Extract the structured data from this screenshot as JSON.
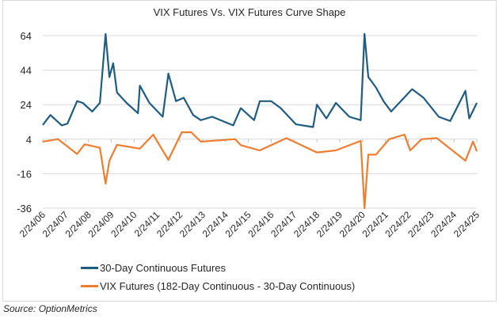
{
  "chart_data": {
    "type": "line",
    "title": "VIX Futures Vs. VIX Futures Curve Shape",
    "xlabel": "",
    "ylabel": "",
    "ylim": [
      -36,
      64
    ],
    "yticks": [
      64,
      44,
      24,
      4,
      -16,
      -36
    ],
    "ytick_labels": [
      "64",
      "44",
      "24",
      "4",
      "-16",
      "-36"
    ],
    "xlim": [
      "2006-02",
      "2025-02"
    ],
    "xtick_labels": [
      "2/24/06",
      "2/24/07",
      "2/24/08",
      "2/24/09",
      "2/24/10",
      "2/24/11",
      "2/24/12",
      "2/24/13",
      "2/24/14",
      "2/24/15",
      "2/24/16",
      "2/24/17",
      "2/24/18",
      "2/24/19",
      "2/24/20",
      "2/24/21",
      "2/24/22",
      "2/24/23",
      "2/24/24",
      "2/24/25"
    ],
    "grid": "horizontal",
    "legend_position": "bottom",
    "series": [
      {
        "name": "30-Day Continuous Futures",
        "color": "#1f5c7f",
        "points": [
          [
            "2006-02",
            12.2
          ],
          [
            "2006-06",
            18
          ],
          [
            "2006-12",
            12
          ],
          [
            "2007-03",
            13
          ],
          [
            "2007-08",
            26
          ],
          [
            "2007-11",
            25
          ],
          [
            "2008-04",
            20
          ],
          [
            "2008-08",
            25
          ],
          [
            "2008-11",
            65
          ],
          [
            "2009-01",
            40
          ],
          [
            "2009-03",
            48
          ],
          [
            "2009-05",
            31
          ],
          [
            "2009-10",
            25
          ],
          [
            "2010-04",
            19
          ],
          [
            "2010-05",
            35
          ],
          [
            "2010-10",
            25
          ],
          [
            "2011-05",
            17
          ],
          [
            "2011-08",
            42
          ],
          [
            "2011-12",
            26
          ],
          [
            "2012-04",
            28
          ],
          [
            "2012-09",
            18
          ],
          [
            "2013-01",
            15
          ],
          [
            "2013-07",
            17
          ],
          [
            "2014-06",
            12
          ],
          [
            "2014-10",
            22
          ],
          [
            "2015-05",
            15
          ],
          [
            "2015-08",
            26
          ],
          [
            "2016-02",
            26
          ],
          [
            "2016-07",
            22
          ],
          [
            "2017-03",
            12.6
          ],
          [
            "2017-12",
            11
          ],
          [
            "2018-02",
            24
          ],
          [
            "2018-07",
            16
          ],
          [
            "2018-12",
            25
          ],
          [
            "2019-07",
            17
          ],
          [
            "2020-01",
            15
          ],
          [
            "2020-03",
            65
          ],
          [
            "2020-05",
            40
          ],
          [
            "2020-09",
            34
          ],
          [
            "2021-01",
            26
          ],
          [
            "2021-05",
            20
          ],
          [
            "2022-04",
            33
          ],
          [
            "2022-10",
            28
          ],
          [
            "2023-06",
            17
          ],
          [
            "2023-12",
            14.5
          ],
          [
            "2024-08",
            32
          ],
          [
            "2024-10",
            16
          ],
          [
            "2025-02",
            25
          ]
        ]
      },
      {
        "name": "VIX Futures (182-Day Continuous - 30-Day Continuous)",
        "color": "#ed7d31",
        "points": [
          [
            "2006-02",
            2.6
          ],
          [
            "2006-10",
            4
          ],
          [
            "2007-08",
            -4.6
          ],
          [
            "2007-12",
            1
          ],
          [
            "2008-08",
            -1
          ],
          [
            "2008-11",
            -21.8
          ],
          [
            "2009-01",
            -8.5
          ],
          [
            "2009-05",
            0.7
          ],
          [
            "2010-05",
            -1.5
          ],
          [
            "2010-12",
            6.6
          ],
          [
            "2011-08",
            -8
          ],
          [
            "2012-03",
            8
          ],
          [
            "2012-08",
            8
          ],
          [
            "2013-01",
            2.6
          ],
          [
            "2014-07",
            4
          ],
          [
            "2014-10",
            0.5
          ],
          [
            "2015-08",
            -2.5
          ],
          [
            "2016-10",
            4.6
          ],
          [
            "2018-02",
            -3.7
          ],
          [
            "2018-12",
            -2.5
          ],
          [
            "2020-01",
            3
          ],
          [
            "2020-03",
            -36
          ],
          [
            "2020-05",
            -5
          ],
          [
            "2020-09",
            -5
          ],
          [
            "2021-04",
            4
          ],
          [
            "2021-12",
            6.6
          ],
          [
            "2022-03",
            -2.5
          ],
          [
            "2022-09",
            4
          ],
          [
            "2023-05",
            4.6
          ],
          [
            "2024-08",
            -8.5
          ],
          [
            "2024-12",
            2.6
          ],
          [
            "2025-02",
            -3
          ]
        ]
      }
    ]
  },
  "source": "Source: OptionMetrics"
}
